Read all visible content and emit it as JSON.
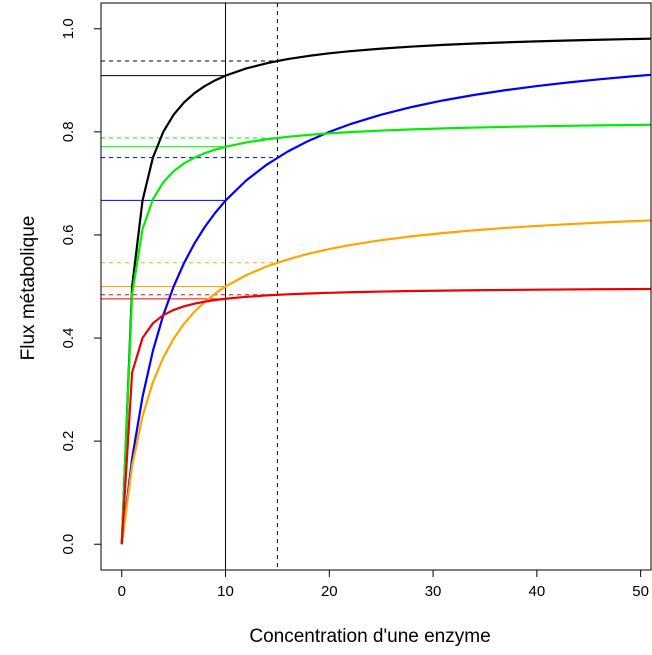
{
  "chart_data": {
    "type": "line",
    "title": "",
    "xlabel": "Concentration d'une enzyme",
    "ylabel": "Flux métabolique",
    "xlim": [
      -2,
      51
    ],
    "ylim": [
      -0.05,
      1.05
    ],
    "xticks": [
      "0",
      "10",
      "20",
      "30",
      "40",
      "50"
    ],
    "yticks": [
      "0.0",
      "0.2",
      "0.4",
      "0.6",
      "0.8",
      "1.0"
    ],
    "grid": false,
    "legend": "none",
    "series": [
      {
        "color": "#000000",
        "vmax": 1.0,
        "km": 1.0,
        "ref10": 0.909,
        "ref15": 0.9375
      },
      {
        "color": "#0000ff",
        "vmax": 1.0,
        "km": 5.0,
        "ref10": 0.667,
        "ref15": 0.75
      },
      {
        "color": "#00ee00",
        "vmax": 0.825,
        "km": 0.7,
        "ref10": 0.771,
        "ref15": 0.788
      },
      {
        "color": "#ffa500",
        "vmax": 0.67,
        "km": 3.4,
        "ref10": 0.5,
        "ref15": 0.546
      },
      {
        "color": "#ee0000",
        "vmax": 0.5,
        "km": 0.5,
        "ref10": 0.476,
        "ref15": 0.484
      }
    ],
    "sample_x": [
      0,
      1,
      2,
      3,
      4,
      5,
      6,
      7,
      8,
      9,
      10,
      12,
      14,
      16,
      18,
      20,
      22,
      25,
      28,
      31,
      34,
      37,
      40,
      43,
      46,
      49,
      51
    ],
    "reference_lines": {
      "solid_x": 10,
      "dashed_x": 15
    }
  }
}
